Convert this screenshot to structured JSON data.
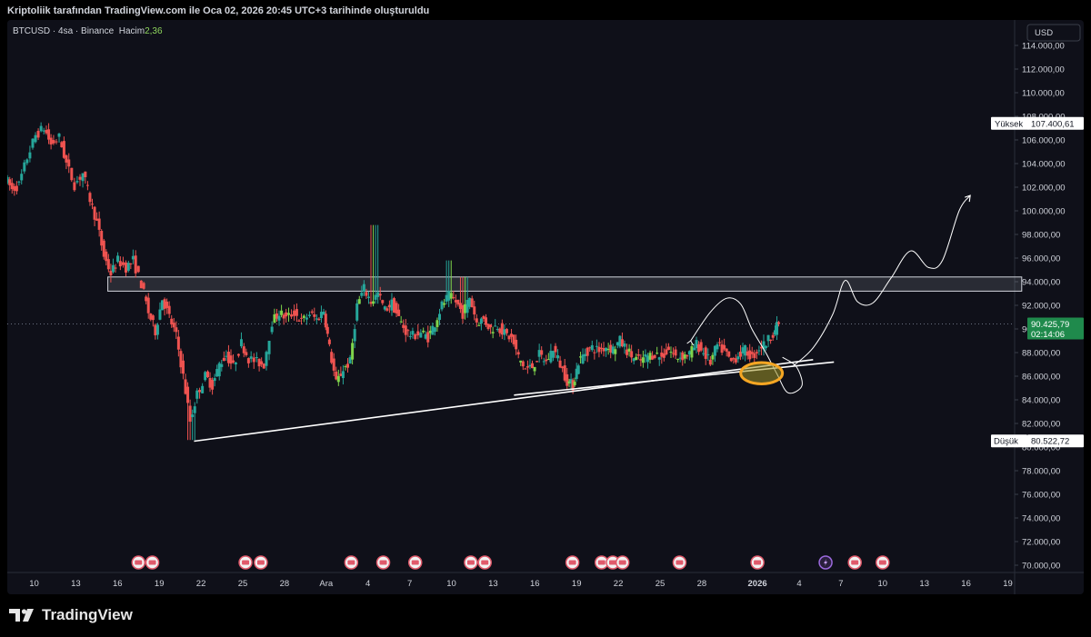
{
  "header": {
    "text": "Kriptoliik tarafından TradingView.com ile Oca 02, 2026 20:45 UTC+3 tarihinde oluşturuldu"
  },
  "legend": {
    "symbol": "BTCUSD",
    "separator1": " · ",
    "interval": "4sa",
    "separator2": " · ",
    "exchange": "Binance",
    "volume_label": "Hacim",
    "volume_value": "2,36"
  },
  "axis": {
    "currency": "USD",
    "high_label": "Yüksek",
    "high_value": "107.400,61",
    "low_label": "Düşük",
    "low_value": "80.522,72",
    "last_price": "90.425,79",
    "countdown": "02:14:06"
  },
  "brand": {
    "name": "TradingView"
  },
  "colors": {
    "up": "#26a69a",
    "up_bright": "#7fd44b",
    "down": "#ef5350",
    "accent_orange": "#f5a623",
    "event_icon": "#e05a6b"
  },
  "chart_data": {
    "type": "candlestick",
    "title": "",
    "ylim": [
      70000,
      116000
    ],
    "y_ticks": [
      {
        "value": 70000,
        "label": "70.000,00"
      },
      {
        "value": 72000,
        "label": "72.000,00"
      },
      {
        "value": 74000,
        "label": "74.000,00"
      },
      {
        "value": 76000,
        "label": "76.000,00"
      },
      {
        "value": 78000,
        "label": "78.000,00"
      },
      {
        "value": 80000,
        "label": "80.000,00"
      },
      {
        "value": 82000,
        "label": "82.000,00"
      },
      {
        "value": 84000,
        "label": "84.000,00"
      },
      {
        "value": 86000,
        "label": "86.000,00"
      },
      {
        "value": 88000,
        "label": "88.000,00"
      },
      {
        "value": 90000,
        "label": "90.000,00"
      },
      {
        "value": 92000,
        "label": "92.000,00"
      },
      {
        "value": 94000,
        "label": "94.000,00"
      },
      {
        "value": 96000,
        "label": "96.000,00"
      },
      {
        "value": 98000,
        "label": "98.000,00"
      },
      {
        "value": 100000,
        "label": "100.000,00"
      },
      {
        "value": 102000,
        "label": "102.000,00"
      },
      {
        "value": 104000,
        "label": "104.000,00"
      },
      {
        "value": 106000,
        "label": "106.000,00"
      },
      {
        "value": 108000,
        "label": "108.000,00"
      },
      {
        "value": 110000,
        "label": "110.000,00"
      },
      {
        "value": 112000,
        "label": "112.000,00"
      },
      {
        "value": 114000,
        "label": "114.000,00"
      }
    ],
    "x_ticks": [
      {
        "day": 10,
        "label": "10"
      },
      {
        "day": 13,
        "label": "13"
      },
      {
        "day": 16,
        "label": "16"
      },
      {
        "day": 19,
        "label": "19"
      },
      {
        "day": 22,
        "label": "22"
      },
      {
        "day": 25,
        "label": "25"
      },
      {
        "day": 28,
        "label": "28"
      },
      {
        "day": 31,
        "label": "Ara"
      },
      {
        "day": 34,
        "label": "4"
      },
      {
        "day": 37,
        "label": "7"
      },
      {
        "day": 40,
        "label": "10"
      },
      {
        "day": 43,
        "label": "13"
      },
      {
        "day": 46,
        "label": "16"
      },
      {
        "day": 49,
        "label": "19"
      },
      {
        "day": 52,
        "label": "22"
      },
      {
        "day": 55,
        "label": "25"
      },
      {
        "day": 58,
        "label": "28"
      },
      {
        "day": 62,
        "label": "2026"
      },
      {
        "day": 65,
        "label": "4"
      },
      {
        "day": 68,
        "label": "7"
      },
      {
        "day": 71,
        "label": "10"
      },
      {
        "day": 74,
        "label": "13"
      },
      {
        "day": 77,
        "label": "16"
      },
      {
        "day": 80,
        "label": "19"
      }
    ],
    "current_price": 90425.79,
    "recorded_high": 107400.61,
    "recorded_low": 80522.72,
    "price_path": [
      {
        "day": 8.0,
        "price": 102800
      },
      {
        "day": 8.5,
        "price": 101800
      },
      {
        "day": 9.0,
        "price": 102200
      },
      {
        "day": 9.6,
        "price": 104500
      },
      {
        "day": 10.2,
        "price": 106400
      },
      {
        "day": 10.8,
        "price": 107000
      },
      {
        "day": 11.3,
        "price": 105600
      },
      {
        "day": 11.9,
        "price": 106200
      },
      {
        "day": 12.4,
        "price": 104000
      },
      {
        "day": 13.0,
        "price": 102200
      },
      {
        "day": 13.6,
        "price": 103200
      },
      {
        "day": 14.1,
        "price": 101000
      },
      {
        "day": 14.6,
        "price": 99000
      },
      {
        "day": 15.1,
        "price": 96200
      },
      {
        "day": 15.6,
        "price": 94700
      },
      {
        "day": 16.1,
        "price": 95800
      },
      {
        "day": 16.7,
        "price": 95200
      },
      {
        "day": 17.2,
        "price": 95800
      },
      {
        "day": 17.8,
        "price": 93800
      },
      {
        "day": 18.3,
        "price": 91400
      },
      {
        "day": 18.8,
        "price": 89800
      },
      {
        "day": 19.3,
        "price": 92600
      },
      {
        "day": 19.8,
        "price": 91000
      },
      {
        "day": 20.3,
        "price": 89400
      },
      {
        "day": 20.8,
        "price": 86000
      },
      {
        "day": 21.3,
        "price": 82200
      },
      {
        "day": 21.8,
        "price": 84500
      },
      {
        "day": 22.4,
        "price": 86000
      },
      {
        "day": 22.9,
        "price": 85200
      },
      {
        "day": 23.4,
        "price": 87000
      },
      {
        "day": 23.9,
        "price": 87800
      },
      {
        "day": 24.4,
        "price": 86800
      },
      {
        "day": 25.0,
        "price": 88800
      },
      {
        "day": 25.5,
        "price": 87500
      },
      {
        "day": 26.1,
        "price": 87200
      },
      {
        "day": 26.6,
        "price": 87000
      },
      {
        "day": 27.2,
        "price": 90600
      },
      {
        "day": 27.7,
        "price": 91400
      },
      {
        "day": 28.2,
        "price": 90900
      },
      {
        "day": 28.8,
        "price": 91400
      },
      {
        "day": 29.3,
        "price": 90600
      },
      {
        "day": 29.9,
        "price": 91300
      },
      {
        "day": 30.4,
        "price": 90800
      },
      {
        "day": 30.9,
        "price": 91600
      },
      {
        "day": 31.3,
        "price": 88400
      },
      {
        "day": 31.8,
        "price": 85400
      },
      {
        "day": 32.3,
        "price": 86600
      },
      {
        "day": 32.8,
        "price": 87200
      },
      {
        "day": 33.3,
        "price": 92000
      },
      {
        "day": 33.8,
        "price": 93400
      },
      {
        "day": 34.3,
        "price": 92300
      },
      {
        "day": 34.8,
        "price": 93000
      },
      {
        "day": 35.3,
        "price": 91600
      },
      {
        "day": 35.8,
        "price": 92200
      },
      {
        "day": 36.3,
        "price": 90900
      },
      {
        "day": 36.8,
        "price": 89800
      },
      {
        "day": 37.3,
        "price": 89400
      },
      {
        "day": 37.9,
        "price": 89700
      },
      {
        "day": 38.4,
        "price": 89300
      },
      {
        "day": 38.9,
        "price": 90500
      },
      {
        "day": 39.4,
        "price": 92000
      },
      {
        "day": 39.9,
        "price": 92800
      },
      {
        "day": 40.4,
        "price": 92300
      },
      {
        "day": 40.9,
        "price": 91300
      },
      {
        "day": 41.4,
        "price": 92700
      },
      {
        "day": 41.9,
        "price": 90600
      },
      {
        "day": 42.4,
        "price": 90800
      },
      {
        "day": 42.9,
        "price": 90000
      },
      {
        "day": 43.4,
        "price": 90300
      },
      {
        "day": 43.9,
        "price": 89600
      },
      {
        "day": 44.4,
        "price": 89200
      },
      {
        "day": 44.9,
        "price": 87600
      },
      {
        "day": 45.4,
        "price": 86600
      },
      {
        "day": 45.9,
        "price": 86800
      },
      {
        "day": 46.4,
        "price": 87800
      },
      {
        "day": 46.9,
        "price": 87200
      },
      {
        "day": 47.4,
        "price": 88400
      },
      {
        "day": 47.9,
        "price": 87000
      },
      {
        "day": 48.4,
        "price": 85600
      },
      {
        "day": 48.8,
        "price": 85200
      },
      {
        "day": 49.2,
        "price": 87200
      },
      {
        "day": 49.7,
        "price": 88000
      },
      {
        "day": 50.2,
        "price": 88400
      },
      {
        "day": 50.7,
        "price": 88200
      },
      {
        "day": 51.2,
        "price": 88500
      },
      {
        "day": 51.7,
        "price": 88300
      },
      {
        "day": 52.2,
        "price": 89000
      },
      {
        "day": 52.7,
        "price": 88200
      },
      {
        "day": 53.2,
        "price": 87500
      },
      {
        "day": 53.7,
        "price": 87300
      },
      {
        "day": 54.2,
        "price": 87700
      },
      {
        "day": 54.7,
        "price": 87900
      },
      {
        "day": 55.2,
        "price": 87600
      },
      {
        "day": 55.7,
        "price": 88300
      },
      {
        "day": 56.2,
        "price": 87600
      },
      {
        "day": 56.7,
        "price": 87700
      },
      {
        "day": 57.2,
        "price": 87900
      },
      {
        "day": 57.7,
        "price": 88700
      },
      {
        "day": 58.2,
        "price": 88000
      },
      {
        "day": 58.7,
        "price": 87200
      },
      {
        "day": 59.2,
        "price": 88600
      },
      {
        "day": 59.7,
        "price": 88100
      },
      {
        "day": 60.2,
        "price": 87200
      },
      {
        "day": 60.7,
        "price": 87800
      },
      {
        "day": 61.2,
        "price": 88200
      },
      {
        "day": 61.7,
        "price": 87600
      },
      {
        "day": 62.2,
        "price": 88400
      },
      {
        "day": 62.7,
        "price": 88800
      },
      {
        "day": 63.2,
        "price": 89700
      },
      {
        "day": 63.6,
        "price": 90426
      }
    ],
    "resistance_zone": {
      "day_start": 15.3,
      "day_end": 81.0,
      "price_low": 93200,
      "price_high": 94400
    },
    "trendlines": [
      {
        "day1": 21.5,
        "price1": 80500,
        "day2": 66.0,
        "price2": 87400
      },
      {
        "day1": 44.5,
        "price1": 84400,
        "day2": 67.5,
        "price2": 87200
      }
    ],
    "projection_path": [
      {
        "day": 64.5,
        "price": 86800
      },
      {
        "day": 66.0,
        "price": 88400
      },
      {
        "day": 67.4,
        "price": 91200
      },
      {
        "day": 68.3,
        "price": 94100
      },
      {
        "day": 69.2,
        "price": 92300
      },
      {
        "day": 70.3,
        "price": 92200
      },
      {
        "day": 71.6,
        "price": 94300
      },
      {
        "day": 73.0,
        "price": 96600
      },
      {
        "day": 74.3,
        "price": 95200
      },
      {
        "day": 75.3,
        "price": 95800
      },
      {
        "day": 76.5,
        "price": 100000
      },
      {
        "day": 77.3,
        "price": 101300
      }
    ],
    "pattern_path": [
      {
        "day": 57.2,
        "price": 89000
      },
      {
        "day": 58.6,
        "price": 91400
      },
      {
        "day": 59.8,
        "price": 92600
      },
      {
        "day": 60.8,
        "price": 92100
      },
      {
        "day": 61.6,
        "price": 90000
      },
      {
        "day": 62.6,
        "price": 88000
      },
      {
        "day": 63.4,
        "price": 86200
      },
      {
        "day": 64.2,
        "price": 84600
      },
      {
        "day": 65.2,
        "price": 85200
      },
      {
        "day": 64.8,
        "price": 86800
      },
      {
        "day": 63.8,
        "price": 87600
      }
    ],
    "highlight_ellipse": {
      "day": 62.3,
      "price": 86250,
      "rx_days": 1.5,
      "ry_price": 900
    },
    "event_days": [
      17.5,
      18.5,
      25.2,
      26.3,
      32.8,
      35.1,
      37.4,
      41.4,
      42.4,
      48.7,
      50.8,
      51.6,
      52.3,
      56.4,
      62.0,
      66.9,
      69.0,
      71.0
    ]
  }
}
